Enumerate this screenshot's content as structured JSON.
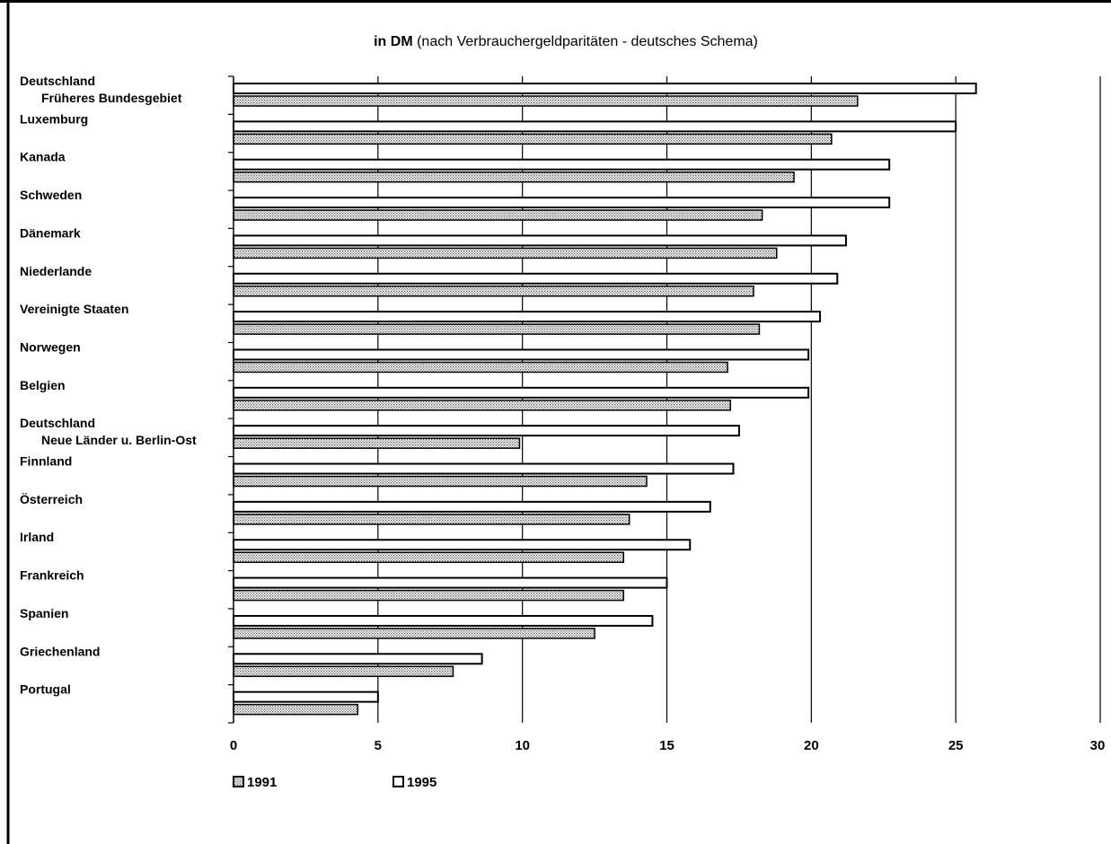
{
  "chart_data": {
    "type": "bar",
    "orientation": "horizontal",
    "title_bold": "in DM",
    "title_rest": " (nach Verbrauchergeldparitäten - deutsches Schema)",
    "categories": [
      [
        "Deutschland",
        "Früheres Bundesgebiet"
      ],
      [
        "Luxemburg"
      ],
      [
        "Kanada"
      ],
      [
        "Schweden"
      ],
      [
        "Dänemark"
      ],
      [
        "Niederlande"
      ],
      [
        "Vereinigte Staaten"
      ],
      [
        "Norwegen"
      ],
      [
        "Belgien"
      ],
      [
        "Deutschland",
        "Neue Länder u. Berlin-Ost"
      ],
      [
        "Finnland"
      ],
      [
        "Österreich"
      ],
      [
        "Irland"
      ],
      [
        "Frankreich"
      ],
      [
        "Spanien"
      ],
      [
        "Griechenland"
      ],
      [
        "Portugal"
      ]
    ],
    "series": [
      {
        "name": "1995",
        "pattern": "hollow",
        "values": [
          25.7,
          25.0,
          22.7,
          22.7,
          21.2,
          20.9,
          20.3,
          19.9,
          19.9,
          17.5,
          17.3,
          16.5,
          15.8,
          15.0,
          14.5,
          8.6,
          5.0
        ]
      },
      {
        "name": "1991",
        "pattern": "dotted",
        "values": [
          21.6,
          20.7,
          19.4,
          18.3,
          18.8,
          18.0,
          18.2,
          17.1,
          17.2,
          9.9,
          14.3,
          13.7,
          13.5,
          13.5,
          12.5,
          7.6,
          4.3
        ]
      }
    ],
    "xlim": [
      0,
      30
    ],
    "xticks": [
      "0",
      "5",
      "10",
      "15",
      "20",
      "25",
      "30"
    ],
    "grid": true,
    "legend": [
      {
        "name": "1991",
        "pattern": "dotted"
      },
      {
        "name": "1995",
        "pattern": "hollow"
      }
    ],
    "legend_placement": "bottom-left"
  }
}
